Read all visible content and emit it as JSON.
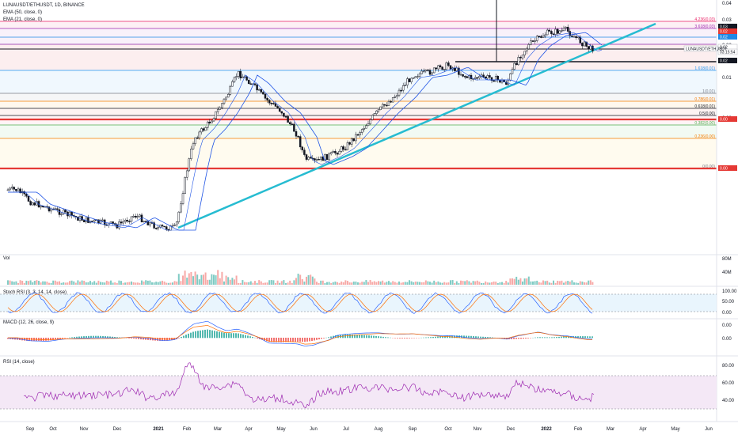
{
  "header": {
    "symbol_line": "LUNAUSDT/ETHUSDT, 1D, BINANCE",
    "ema1": "EMA (50, close, 0)",
    "ema2": "EMA (21, close, 0)"
  },
  "panels": {
    "vol": "Vol",
    "stoch": "Stoch RSI (3, 3, 14, 14, close)",
    "macd": "MACD (12, 26, close, 9)",
    "rsi": "RSI (14, close)"
  },
  "colors": {
    "up": "#26a69a",
    "down": "#ef5350",
    "trendline": "#26bcd1",
    "ema50": "#1e53e5",
    "ema21": "#1e53e5",
    "fib_red": "#e53935",
    "rsi": "#9c27b0"
  },
  "price_scale": {
    "ticks": [
      "0.04",
      "0.03",
      "0.02",
      "0.01",
      "0.00"
    ],
    "tags": [
      {
        "text": "0.03",
        "bg": "#131722"
      },
      {
        "text": "0.02",
        "bg": "#e53935"
      },
      {
        "text": "0.02",
        "bg": "#1e88e5"
      },
      {
        "text": "0.02",
        "bg": "#ffffff"
      },
      {
        "text": "03:15:54",
        "bg": "#ffffff"
      },
      {
        "text": "0.02",
        "bg": "#131722"
      },
      {
        "text": "0.00",
        "bg": "#e53935"
      },
      {
        "text": "0.00",
        "bg": "#e53935"
      }
    ],
    "symbol_tag": "LUNAUSDT/ETHUSDT"
  },
  "fib_levels": [
    {
      "label": "4.236(0.03)",
      "color": "#e91e63"
    },
    {
      "label": "3.618(0.03)",
      "color": "#9c27b0"
    },
    {
      "label": "1.618(0.01)",
      "color": "#2196f3"
    },
    {
      "label": "1(0.01)",
      "color": "#787b86"
    },
    {
      "label": "0.786(0.01)",
      "color": "#f57c00"
    },
    {
      "label": "0.618(0.01)",
      "color": "#131722"
    },
    {
      "label": "0.5(0.00)",
      "color": "#131722"
    },
    {
      "label": "0.382(0.00)",
      "color": "#4caf50"
    },
    {
      "label": "0.236(0.00)",
      "color": "#f57c00"
    },
    {
      "label": "0(0.00)",
      "color": "#787b86"
    }
  ],
  "vol_scale": [
    "80M",
    "40M"
  ],
  "stoch_scale": [
    "100.00",
    "50.00",
    "0.00"
  ],
  "macd_scale": [
    "0.00",
    "0.00"
  ],
  "rsi_scale": [
    "80.00",
    "60.00",
    "40.00"
  ],
  "time_axis": [
    "Sep",
    "Oct",
    "Nov",
    "Dec",
    "2021",
    "Feb",
    "Mar",
    "Apr",
    "May",
    "Jun",
    "Jul",
    "Aug",
    "Sep",
    "Oct",
    "Nov",
    "Dec",
    "2022",
    "Feb",
    "Mar",
    "Apr",
    "May",
    "Jun"
  ],
  "chart_data": {
    "type": "line",
    "title": "LUNAUSDT/ETHUSDT, 1D, BINANCE",
    "x": [
      "Sep 2020",
      "Oct 2020",
      "Nov 2020",
      "Dec 2020",
      "Jan 2021",
      "Feb 2021",
      "Mar 2021",
      "Apr 2021",
      "May 2021",
      "Jun 2021",
      "Jul 2021",
      "Aug 2021",
      "Sep 2021",
      "Oct 2021",
      "Nov 2021",
      "Dec 2021",
      "Jan 2022",
      "Feb 2022"
    ],
    "series": [
      {
        "values": [
          0.0035,
          0.0022,
          0.0018,
          0.0015,
          0.001,
          0.0125,
          0.0145,
          0.012,
          0.0075,
          0.002,
          0.0045,
          0.0105,
          0.013,
          0.0125,
          0.0125,
          0.018,
          0.0225,
          0.0202
        ]
      }
    ],
    "ylim": [
      0.0,
      0.04
    ],
    "trendline": "rising support from Jan 2021 low"
  }
}
